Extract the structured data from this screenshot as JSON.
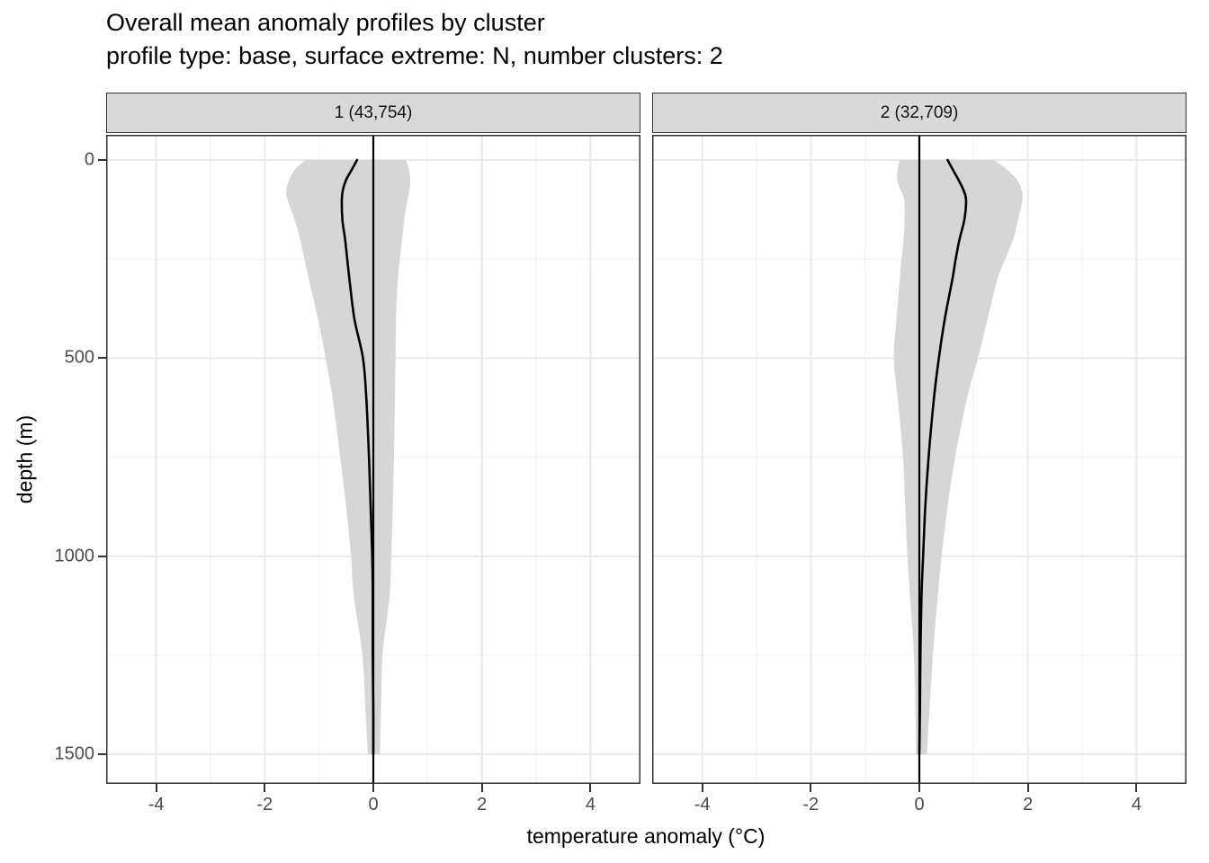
{
  "title": "Overall mean anomaly profiles by cluster",
  "subtitle": "profile type: base, surface extreme: N, number clusters: 2",
  "chart_data": {
    "type": "line",
    "title": "Overall mean anomaly profiles by cluster",
    "subtitle": "profile type: base, surface extreme: N, number clusters: 2",
    "xlabel": "temperature anomaly (°C)",
    "ylabel": "depth (m)",
    "x_ticks": [
      -4,
      -2,
      0,
      2,
      4
    ],
    "x_minor_ticks": [
      -3,
      -1,
      1,
      3
    ],
    "y_ticks": [
      0,
      500,
      1000,
      1500
    ],
    "y_minor_ticks": [
      250,
      750,
      1250
    ],
    "xlim": [
      -4.92,
      4.92
    ],
    "ylim": [
      -64,
      1575
    ],
    "y_reversed": true,
    "grid": "major+minor",
    "legend": "none",
    "zero_reference_x": 0,
    "colors": {
      "ribbon": "#d6d6d6",
      "mean_line": "#000000",
      "zero_line": "#000000",
      "grid_major": "#e9e9e9",
      "grid_minor": "#f2f2f2",
      "panel_border": "#333333",
      "strip_bg": "#d9d9d9",
      "tick_label": "#4d4d4d"
    },
    "depth": [
      0,
      25,
      50,
      75,
      100,
      150,
      200,
      250,
      300,
      400,
      500,
      600,
      750,
      875,
      1000,
      1100,
      1250,
      1400,
      1500
    ],
    "facets": [
      {
        "label": "1 (43,754)",
        "mean": [
          -0.3,
          -0.4,
          -0.5,
          -0.56,
          -0.58,
          -0.57,
          -0.52,
          -0.48,
          -0.44,
          -0.35,
          -0.19,
          -0.13,
          -0.08,
          -0.05,
          -0.02,
          -0.01,
          -0.01,
          0.0,
          0.0
        ],
        "lower": [
          -1.25,
          -1.45,
          -1.55,
          -1.6,
          -1.58,
          -1.45,
          -1.35,
          -1.27,
          -1.19,
          -1.02,
          -0.88,
          -0.75,
          -0.61,
          -0.5,
          -0.41,
          -0.36,
          -0.2,
          -0.14,
          -0.1
        ],
        "upper": [
          0.6,
          0.66,
          0.68,
          0.67,
          0.63,
          0.57,
          0.53,
          0.49,
          0.45,
          0.42,
          0.41,
          0.4,
          0.38,
          0.36,
          0.33,
          0.3,
          0.17,
          0.14,
          0.12
        ]
      },
      {
        "label": "2 (32,709)",
        "mean": [
          0.52,
          0.62,
          0.72,
          0.81,
          0.86,
          0.83,
          0.74,
          0.67,
          0.61,
          0.47,
          0.36,
          0.27,
          0.17,
          0.11,
          0.07,
          0.04,
          0.02,
          0.01,
          0.0
        ],
        "lower": [
          -0.36,
          -0.4,
          -0.41,
          -0.35,
          -0.28,
          -0.27,
          -0.29,
          -0.33,
          -0.36,
          -0.42,
          -0.47,
          -0.4,
          -0.3,
          -0.26,
          -0.22,
          -0.17,
          -0.1,
          -0.07,
          -0.06
        ],
        "upper": [
          1.38,
          1.62,
          1.8,
          1.88,
          1.9,
          1.82,
          1.73,
          1.58,
          1.44,
          1.26,
          1.08,
          0.88,
          0.66,
          0.52,
          0.41,
          0.34,
          0.25,
          0.18,
          0.14
        ]
      }
    ]
  }
}
